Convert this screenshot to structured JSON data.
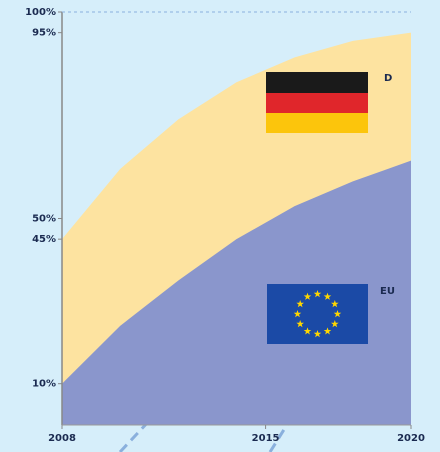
{
  "chart_data": {
    "type": "area",
    "x": [
      2008,
      2010,
      2012,
      2014,
      2016,
      2018,
      2020
    ],
    "series": [
      {
        "name": "D",
        "color": "#fde3a0",
        "values": [
          45,
          62,
          74,
          83,
          89,
          93,
          95
        ]
      },
      {
        "name": "EU",
        "color": "#8a96cc",
        "values": [
          10,
          24,
          35,
          45,
          53,
          59,
          64
        ]
      }
    ],
    "xlim": [
      2008,
      2020
    ],
    "xticks": [
      2008,
      2015,
      2020
    ],
    "ylim": [
      0,
      100
    ],
    "yticks": [
      {
        "value": 10,
        "label": "10%"
      },
      {
        "value": 45,
        "label": "45%"
      },
      {
        "value": 50,
        "label": "50%"
      },
      {
        "value": 95,
        "label": "95%"
      },
      {
        "value": 100,
        "label": "100%"
      }
    ]
  }
}
